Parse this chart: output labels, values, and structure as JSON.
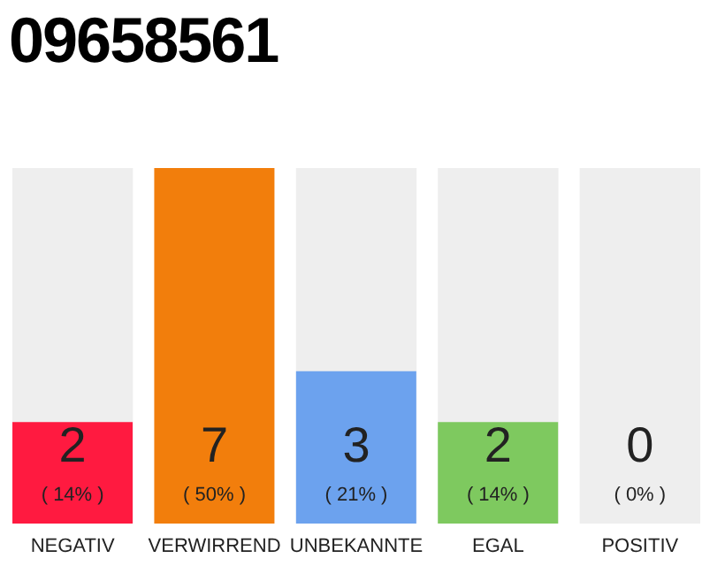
{
  "chart_data": {
    "type": "bar",
    "title": "09658561",
    "categories": [
      "NEGATIV",
      "VERWIRREND",
      "UNBEKANNTE",
      "EGAL",
      "POSITIV"
    ],
    "values": [
      2,
      7,
      3,
      2,
      0
    ],
    "colors": [
      "#ff1a40",
      "#f27e0c",
      "#6ca2ee",
      "#7ec95f",
      "#d8d8d8"
    ],
    "value_labels": [
      "2 ( 14% )",
      "7 ( 50% )",
      "3 ( 21% )",
      "2 ( 14% )",
      "0 ( 0% )"
    ],
    "bands": [
      {
        "axis": "x",
        "from": "NEGATIV",
        "to": "NEGATIV",
        "color": "#eeeeee"
      },
      {
        "axis": "x",
        "from": "UNBEKANNTE",
        "to": "UNBEKANNTE",
        "color": "#eeeeee"
      },
      {
        "axis": "x",
        "from": "EGAL",
        "to": "EGAL",
        "color": "#eeeeee"
      },
      {
        "axis": "x",
        "from": "POSITIV",
        "to": "POSITIV",
        "color": "#eeeeee"
      }
    ]
  }
}
